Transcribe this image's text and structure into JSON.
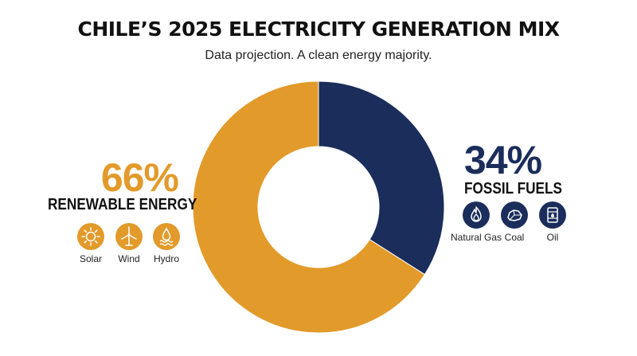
{
  "colors": {
    "renewable": "#E29A2A",
    "fossil": "#1B2D5B"
  },
  "chart_data": {
    "type": "pie",
    "title": "CHILE’S 2025 ELECTRICITY GENERATION MIX",
    "subtitle": "Data projection. A clean energy majority.",
    "donut": true,
    "slices": [
      {
        "label": "FOSSIL FUELS",
        "value": 34,
        "value_label": "34%",
        "color": "#1B2D5B"
      },
      {
        "label": "RENEWABLE ENERGY",
        "value": 66,
        "value_label": "66%",
        "color": "#E29A2A"
      }
    ]
  },
  "renewable": {
    "percent": "66%",
    "label": "RENEWABLE ENERGY",
    "sources": [
      {
        "name": "Solar",
        "icon": "sun-icon"
      },
      {
        "name": "Wind",
        "icon": "wind-turbine-icon"
      },
      {
        "name": "Hydro",
        "icon": "water-drop-icon"
      }
    ]
  },
  "fossil": {
    "percent": "34%",
    "label": "FOSSIL FUELS",
    "sources": [
      {
        "name": "Natural Gas",
        "icon": "flame-icon"
      },
      {
        "name": "Coal",
        "icon": "coal-icon"
      },
      {
        "name": "Oil",
        "icon": "oil-barrel-icon"
      }
    ]
  }
}
